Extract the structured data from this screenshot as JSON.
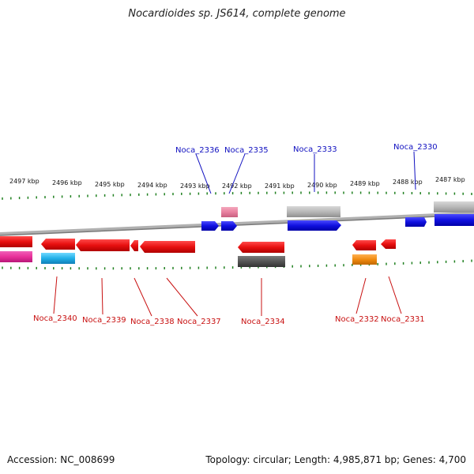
{
  "title": "Nocardioides sp. JS614, complete genome",
  "accession": "Accession: NC_008699",
  "summary": "Topology: circular; Length: 4,985,871 bp; Genes: 4,700",
  "ruler_labels": [
    "2497 kbp",
    "2496 kbp",
    "2495 kbp",
    "2494 kbp",
    "2493 kbp",
    "2492 kbp",
    "2491 kbp",
    "2490 kbp",
    "2489 kbp",
    "2488 kbp",
    "2487 kbp"
  ],
  "top_labels": [
    "Noca_2336",
    "Noca_2335",
    "Noca_2333",
    "Noca_2330"
  ],
  "bottom_labels": [
    "Noca_2340",
    "Noca_2339",
    "Noca_2338",
    "Noca_2337",
    "Noca_2334",
    "Noca_2332",
    "Noca_2331"
  ],
  "colors": {
    "forward": "#1010e0",
    "reverse": "#e81010",
    "gray": "#b8b8b8",
    "dark_gray": "#555555",
    "pink": "#e880a0",
    "magenta": "#e8309a",
    "cyan": "#20b0e8",
    "orange": "#f08a10",
    "label_top": "#1010c0",
    "label_bottom": "#c81010",
    "tick": "#208020"
  }
}
